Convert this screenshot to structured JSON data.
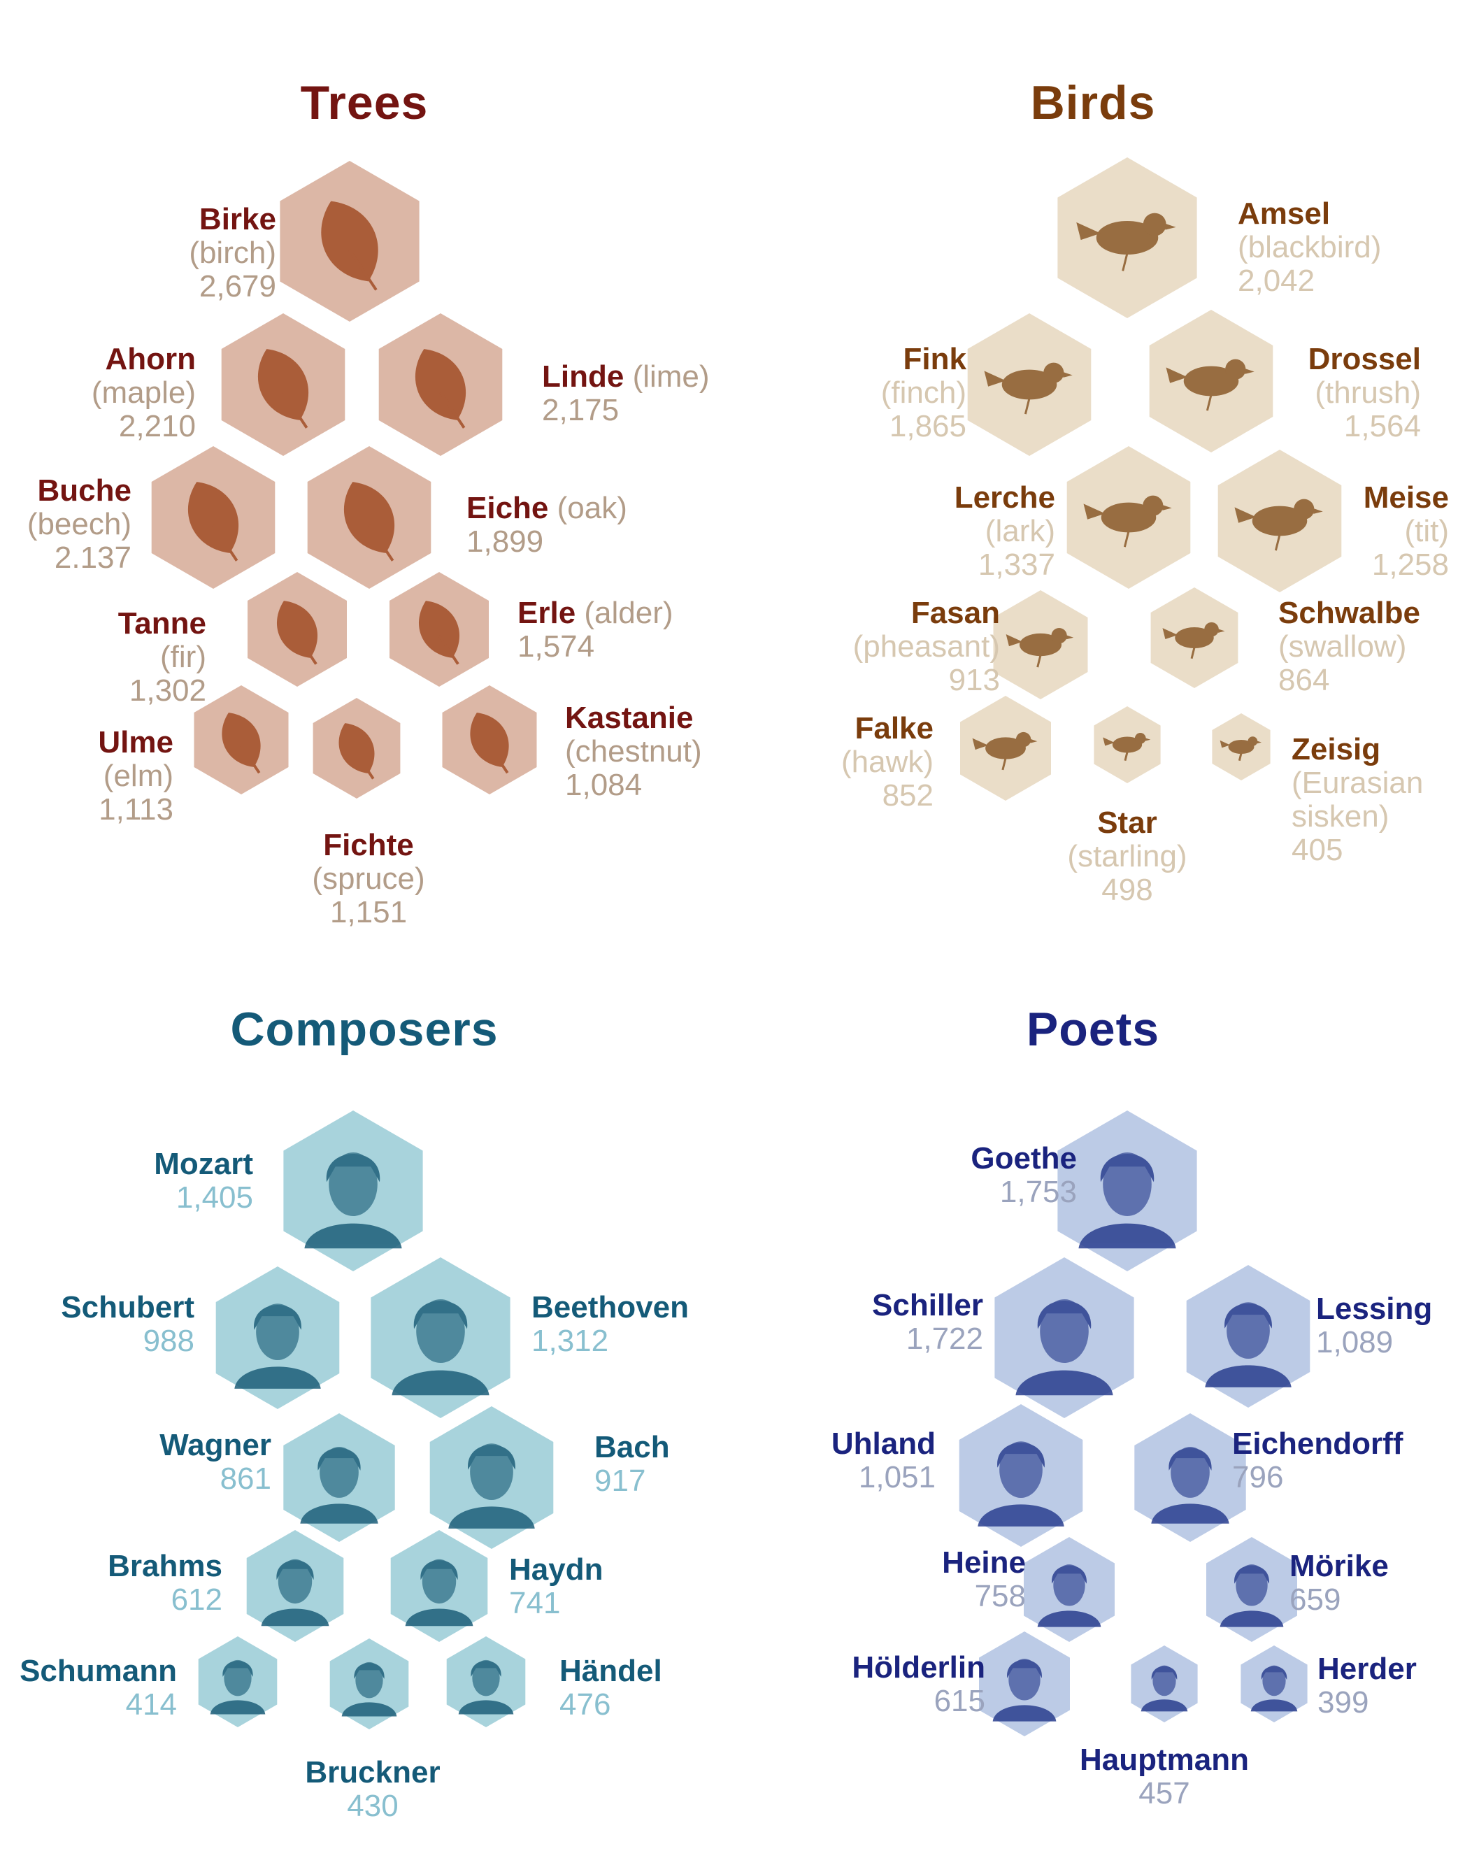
{
  "panels": [
    {
      "id": "trees",
      "title": "Trees",
      "colors": {
        "title": "#731411",
        "name": "#731411",
        "sub": "#b29c88",
        "hex": "#dcb7a6",
        "icon": "#a24e26"
      },
      "items": [
        {
          "name": "Birke",
          "english": "(birch)",
          "count": "2,679",
          "icon": "birch-leaf-icon"
        },
        {
          "name": "Ahorn",
          "english": "(maple)",
          "count": "2,210",
          "icon": "maple-leaf-icon"
        },
        {
          "name": "Linde",
          "english": "(lime)",
          "count": "2,175",
          "icon": "lime-leaf-icon"
        },
        {
          "name": "Buche",
          "english": "(beech)",
          "count": "2.137",
          "icon": "beech-leaf-icon"
        },
        {
          "name": "Eiche",
          "english": "(oak)",
          "count": "1,899",
          "icon": "oak-leaf-icon"
        },
        {
          "name": "Tanne",
          "english": "(fir)",
          "count": "1,302",
          "icon": "fir-cone-icon"
        },
        {
          "name": "Erle",
          "english": "(alder)",
          "count": "1,574",
          "icon": "alder-cone-icon"
        },
        {
          "name": "Ulme",
          "english": "(elm)",
          "count": "1,113",
          "icon": "elm-leaf-icon"
        },
        {
          "name": "Fichte",
          "english": "(spruce)",
          "count": "1,151",
          "icon": "spruce-twig-icon"
        },
        {
          "name": "Kastanie",
          "english": "(chestnut)",
          "count": "1,084",
          "icon": "chestnut-leaf-icon"
        }
      ]
    },
    {
      "id": "birds",
      "title": "Birds",
      "colors": {
        "title": "#7a3c0c",
        "name": "#7a3c0c",
        "sub": "#d6c7b0",
        "hex": "#eaddc8",
        "icon": "#8a5a2a"
      },
      "items": [
        {
          "name": "Amsel",
          "english": "(blackbird)",
          "count": "2,042",
          "icon": "blackbird-icon"
        },
        {
          "name": "Fink",
          "english": "(finch)",
          "count": "1,865",
          "icon": "finch-icon"
        },
        {
          "name": "Drossel",
          "english": "(thrush)",
          "count": "1,564",
          "icon": "thrush-icon"
        },
        {
          "name": "Lerche",
          "english": "(lark)",
          "count": "1,337",
          "icon": "lark-icon"
        },
        {
          "name": "Meise",
          "english": "(tit)",
          "count": "1,258",
          "icon": "tit-icon"
        },
        {
          "name": "Fasan",
          "english": "(pheasant)",
          "count": "913",
          "icon": "pheasant-icon"
        },
        {
          "name": "Schwalbe",
          "english": "(swallow)",
          "count": "864",
          "icon": "swallow-icon"
        },
        {
          "name": "Falke",
          "english": "(hawk)",
          "count": "852",
          "icon": "hawk-icon"
        },
        {
          "name": "Star",
          "english": "(starling)",
          "count": "498",
          "icon": "starling-icon"
        },
        {
          "name": "Zeisig",
          "english": "(Eurasian sisken)",
          "english_lines": [
            "(Eurasian",
            "sisken)"
          ],
          "count": "405",
          "icon": "sisken-icon"
        }
      ]
    },
    {
      "id": "composers",
      "title": "Composers",
      "colors": {
        "title": "#145a78",
        "name": "#145a78",
        "sub": "#88bfcf",
        "hex": "#a8d3dc",
        "icon": "#1e5f7a"
      },
      "items": [
        {
          "name": "Mozart",
          "count": "1,405",
          "icon": "mozart-portrait-icon"
        },
        {
          "name": "Schubert",
          "count": "988",
          "icon": "schubert-portrait-icon"
        },
        {
          "name": "Beethoven",
          "count": "1,312",
          "icon": "beethoven-portrait-icon"
        },
        {
          "name": "Wagner",
          "count": "861",
          "icon": "wagner-portrait-icon"
        },
        {
          "name": "Bach",
          "count": "917",
          "icon": "bach-portrait-icon"
        },
        {
          "name": "Brahms",
          "count": "612",
          "icon": "brahms-portrait-icon"
        },
        {
          "name": "Haydn",
          "count": "741",
          "icon": "haydn-portrait-icon"
        },
        {
          "name": "Schumann",
          "count": "414",
          "icon": "schumann-portrait-icon"
        },
        {
          "name": "Bruckner",
          "count": "430",
          "icon": "bruckner-portrait-icon"
        },
        {
          "name": "Händel",
          "count": "476",
          "icon": "handel-portrait-icon"
        }
      ]
    },
    {
      "id": "poets",
      "title": "Poets",
      "colors": {
        "title": "#1a237e",
        "name": "#1a237e",
        "sub": "#9aa3bd",
        "hex": "#bccbe6",
        "icon": "#2a3f8f"
      },
      "items": [
        {
          "name": "Goethe",
          "count": "1,753",
          "icon": "goethe-portrait-icon"
        },
        {
          "name": "Schiller",
          "count": "1,722",
          "icon": "schiller-portrait-icon"
        },
        {
          "name": "Lessing",
          "count": "1,089",
          "icon": "lessing-portrait-icon"
        },
        {
          "name": "Uhland",
          "count": "1,051",
          "icon": "uhland-portrait-icon"
        },
        {
          "name": "Eichendorff",
          "count": "796",
          "icon": "eichendorff-portrait-icon"
        },
        {
          "name": "Heine",
          "count": "758",
          "icon": "heine-portrait-icon"
        },
        {
          "name": "Mörike",
          "count": "659",
          "icon": "morike-portrait-icon"
        },
        {
          "name": "Hölderlin",
          "count": "615",
          "icon": "holderlin-portrait-icon"
        },
        {
          "name": "Hauptmann",
          "count": "457",
          "icon": "hauptmann-portrait-icon"
        },
        {
          "name": "Herder",
          "count": "399",
          "icon": "herder-portrait-icon"
        }
      ]
    }
  ]
}
